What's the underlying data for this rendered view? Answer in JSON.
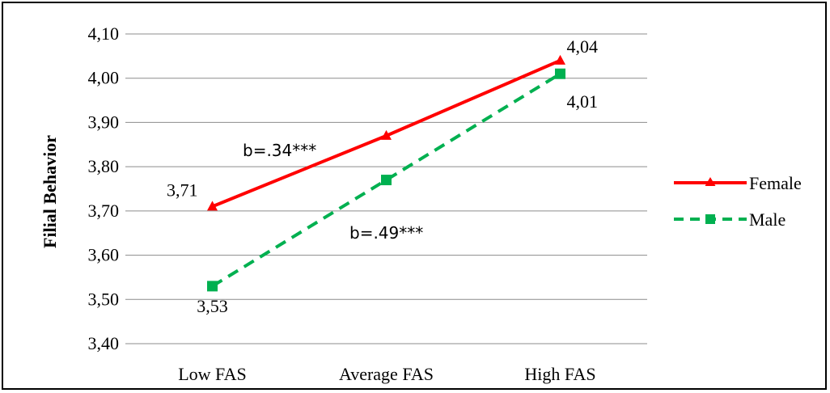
{
  "chart_data": {
    "type": "line",
    "categories": [
      "Low FAS",
      "Average FAS",
      "High FAS"
    ],
    "ylabel": "Filial Behavior",
    "ylim": [
      3.4,
      4.1
    ],
    "yticks": [
      "3,40",
      "3,50",
      "3,60",
      "3,70",
      "3,80",
      "3,90",
      "4,00",
      "4,10"
    ],
    "grid": true,
    "legend": "right",
    "series": [
      {
        "name": "Female",
        "values": [
          3.71,
          3.87,
          4.04
        ],
        "color": "#ff0000",
        "marker": "triangle",
        "dash": "solid",
        "data_labels": [
          "3,71",
          "",
          "4,04"
        ]
      },
      {
        "name": "Male",
        "values": [
          3.53,
          3.77,
          4.01
        ],
        "color": "#00b050",
        "marker": "square",
        "dash": "dashed",
        "data_labels": [
          "3,53",
          "",
          "4,01"
        ]
      }
    ],
    "annotations": [
      "b=.34***",
      "b=.49***"
    ]
  }
}
